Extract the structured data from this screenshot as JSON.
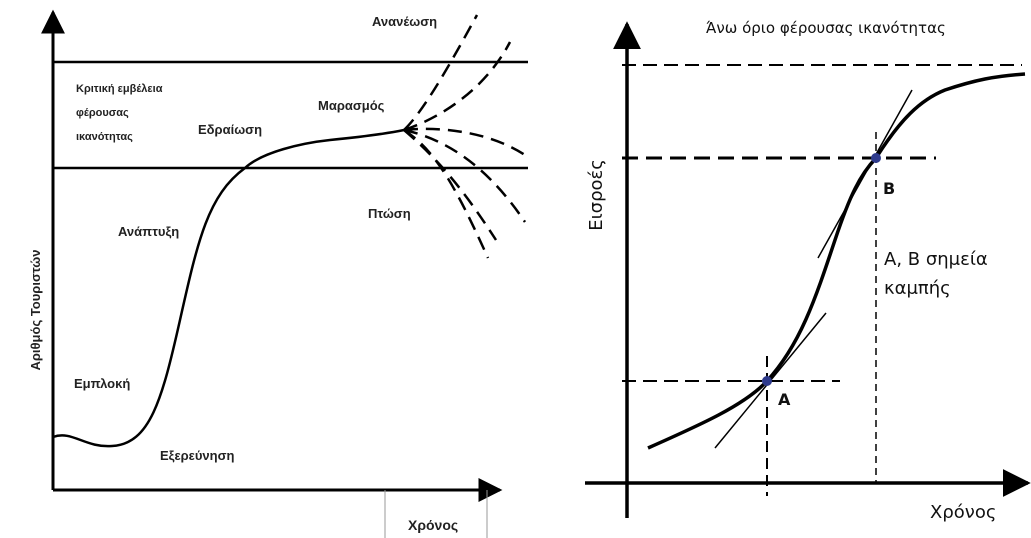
{
  "left_diagram": {
    "y_axis_label": "Αριθμός Τουριστών",
    "x_axis_label": "Χρόνος",
    "capacity_label": [
      "Κριτική εμβέλεια",
      "φέρουσας",
      "ικανότητας"
    ],
    "stages": {
      "exploration": "Εξερεύνηση",
      "involvement": "Εμπλοκή",
      "development": "Ανάπτυξη",
      "consolidation": "Εδραίωση",
      "stagnation": "Μαρασμός",
      "rejuvenation": "Ανανέωση",
      "decline": "Πτώση"
    }
  },
  "right_diagram": {
    "top_label": "Άνω όριο φέρουσας ικανότητας",
    "y_axis_label": "Εισροές",
    "x_axis_label": "Χρόνος",
    "point_a": "A",
    "point_b": "B",
    "note": [
      "A, B σημεία",
      "καμπής"
    ]
  },
  "colors": {
    "line": "#000000",
    "text": "#222222",
    "point": "#2e3a8c"
  }
}
